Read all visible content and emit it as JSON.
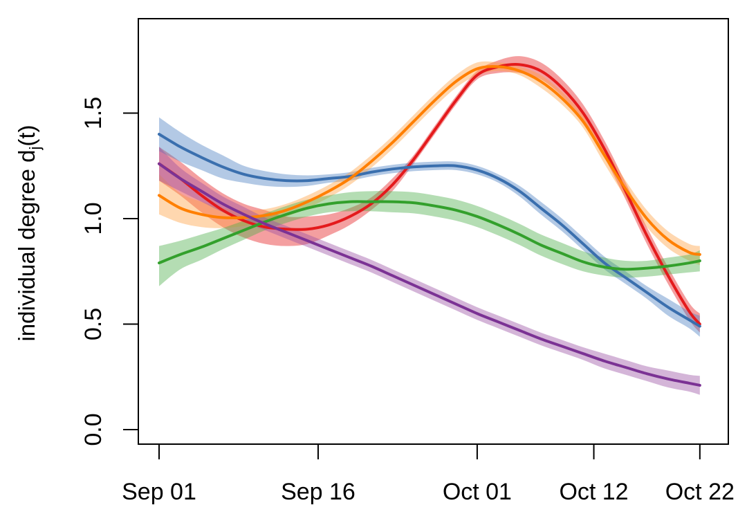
{
  "chart_data": {
    "type": "line",
    "title": "",
    "xlabel": "",
    "ylabel": {
      "main": "individual degree d",
      "subscript": "j",
      "suffix": "(t)"
    },
    "x_ticks": [
      {
        "label": "Sep 01",
        "day": 0
      },
      {
        "label": "Sep 16",
        "day": 15
      },
      {
        "label": "Oct 01",
        "day": 30
      },
      {
        "label": "Oct 12",
        "day": 41
      },
      {
        "label": "Oct 22",
        "day": 51
      }
    ],
    "xlim": [
      -2,
      52.5
    ],
    "y_ticks": [
      {
        "label": "0.0",
        "value": 0.0
      },
      {
        "label": "0.5",
        "value": 0.5
      },
      {
        "label": "1.0",
        "value": 1.0
      },
      {
        "label": "1.5",
        "value": 1.5
      }
    ],
    "ylim": [
      -0.07,
      1.95
    ],
    "x_day_unit": "days since Sep 01",
    "grid": false,
    "legend": "none",
    "series": [
      {
        "name": "red",
        "line_color": "#e41a1c",
        "band_color": "#e41a1c",
        "x": [
          0,
          2,
          4,
          6,
          8,
          10,
          12,
          14,
          16,
          18,
          20,
          22,
          24,
          26,
          28,
          30,
          32,
          34,
          36,
          38,
          40,
          42,
          44,
          46,
          48,
          50,
          51
        ],
        "y": [
          1.26,
          1.19,
          1.11,
          1.04,
          0.99,
          0.96,
          0.95,
          0.95,
          0.97,
          1.01,
          1.07,
          1.16,
          1.28,
          1.42,
          1.56,
          1.68,
          1.72,
          1.73,
          1.7,
          1.62,
          1.5,
          1.33,
          1.13,
          0.92,
          0.73,
          0.56,
          0.5
        ],
        "upper": [
          1.34,
          1.27,
          1.19,
          1.12,
          1.07,
          1.04,
          1.01,
          1.01,
          1.02,
          1.05,
          1.1,
          1.19,
          1.3,
          1.44,
          1.58,
          1.7,
          1.75,
          1.77,
          1.74,
          1.66,
          1.54,
          1.37,
          1.17,
          0.96,
          0.77,
          0.6,
          0.55
        ],
        "lower": [
          1.18,
          1.11,
          1.03,
          0.96,
          0.91,
          0.88,
          0.87,
          0.88,
          0.92,
          0.97,
          1.04,
          1.13,
          1.26,
          1.4,
          1.54,
          1.66,
          1.69,
          1.69,
          1.66,
          1.58,
          1.46,
          1.29,
          1.09,
          0.88,
          0.69,
          0.52,
          0.46
        ]
      },
      {
        "name": "blue",
        "line_color": "#3a6fae",
        "band_color": "#4a7fc0",
        "x": [
          0,
          2,
          4,
          6,
          8,
          10,
          12,
          14,
          16,
          18,
          20,
          22,
          24,
          26,
          28,
          30,
          32,
          34,
          36,
          38,
          40,
          42,
          44,
          46,
          48,
          50,
          51
        ],
        "y": [
          1.4,
          1.34,
          1.29,
          1.245,
          1.21,
          1.19,
          1.18,
          1.18,
          1.19,
          1.2,
          1.22,
          1.235,
          1.245,
          1.25,
          1.25,
          1.23,
          1.19,
          1.13,
          1.05,
          0.97,
          0.88,
          0.79,
          0.72,
          0.65,
          0.58,
          0.52,
          0.49
        ],
        "upper": [
          1.48,
          1.41,
          1.35,
          1.3,
          1.25,
          1.225,
          1.21,
          1.205,
          1.21,
          1.22,
          1.24,
          1.255,
          1.265,
          1.27,
          1.27,
          1.25,
          1.21,
          1.155,
          1.08,
          1.0,
          0.91,
          0.82,
          0.75,
          0.68,
          0.62,
          0.56,
          0.54
        ],
        "lower": [
          1.32,
          1.27,
          1.23,
          1.19,
          1.17,
          1.155,
          1.15,
          1.155,
          1.17,
          1.18,
          1.2,
          1.215,
          1.225,
          1.23,
          1.23,
          1.21,
          1.17,
          1.105,
          1.02,
          0.94,
          0.85,
          0.76,
          0.69,
          0.62,
          0.54,
          0.48,
          0.44
        ]
      },
      {
        "name": "orange",
        "line_color": "#ff7f00",
        "band_color": "#ff9f40",
        "x": [
          0,
          2,
          4,
          6,
          8,
          10,
          12,
          14,
          16,
          18,
          20,
          22,
          24,
          26,
          28,
          30,
          32,
          34,
          36,
          38,
          40,
          42,
          44,
          46,
          48,
          50,
          51
        ],
        "y": [
          1.11,
          1.05,
          1.02,
          1.005,
          1.005,
          1.015,
          1.04,
          1.08,
          1.13,
          1.19,
          1.27,
          1.36,
          1.46,
          1.56,
          1.65,
          1.71,
          1.72,
          1.7,
          1.65,
          1.57,
          1.46,
          1.3,
          1.14,
          1.0,
          0.9,
          0.84,
          0.83
        ],
        "upper": [
          1.21,
          1.12,
          1.08,
          1.05,
          1.04,
          1.045,
          1.07,
          1.11,
          1.16,
          1.22,
          1.3,
          1.39,
          1.49,
          1.59,
          1.68,
          1.74,
          1.74,
          1.72,
          1.68,
          1.6,
          1.49,
          1.34,
          1.18,
          1.04,
          0.94,
          0.88,
          0.87
        ],
        "lower": [
          1.02,
          0.98,
          0.96,
          0.955,
          0.965,
          0.985,
          1.01,
          1.05,
          1.1,
          1.16,
          1.24,
          1.33,
          1.43,
          1.53,
          1.62,
          1.68,
          1.7,
          1.68,
          1.62,
          1.54,
          1.43,
          1.26,
          1.1,
          0.96,
          0.86,
          0.8,
          0.78
        ]
      },
      {
        "name": "green",
        "line_color": "#33a02c",
        "band_color": "#4daf4a",
        "x": [
          0,
          2,
          4,
          6,
          8,
          10,
          12,
          14,
          16,
          18,
          20,
          22,
          24,
          26,
          28,
          30,
          32,
          34,
          36,
          38,
          40,
          42,
          44,
          46,
          48,
          50,
          51
        ],
        "y": [
          0.79,
          0.83,
          0.865,
          0.905,
          0.945,
          0.985,
          1.02,
          1.05,
          1.07,
          1.08,
          1.08,
          1.08,
          1.075,
          1.06,
          1.04,
          1.01,
          0.97,
          0.925,
          0.875,
          0.835,
          0.795,
          0.77,
          0.76,
          0.765,
          0.775,
          0.79,
          0.8
        ],
        "upper": [
          0.87,
          0.895,
          0.925,
          0.955,
          0.99,
          1.025,
          1.06,
          1.09,
          1.11,
          1.125,
          1.13,
          1.13,
          1.125,
          1.11,
          1.09,
          1.06,
          1.02,
          0.975,
          0.925,
          0.885,
          0.845,
          0.815,
          0.8,
          0.8,
          0.815,
          0.83,
          0.85
        ],
        "lower": [
          0.68,
          0.76,
          0.805,
          0.855,
          0.9,
          0.945,
          0.98,
          1.01,
          1.03,
          1.035,
          1.035,
          1.03,
          1.025,
          1.01,
          0.99,
          0.96,
          0.92,
          0.875,
          0.825,
          0.785,
          0.75,
          0.73,
          0.72,
          0.725,
          0.735,
          0.745,
          0.75
        ]
      },
      {
        "name": "purple",
        "line_color": "#7b3294",
        "band_color": "#984ea3",
        "x": [
          0,
          2,
          4,
          6,
          8,
          10,
          12,
          14,
          16,
          18,
          20,
          22,
          24,
          26,
          28,
          30,
          32,
          34,
          36,
          38,
          40,
          42,
          44,
          46,
          48,
          50,
          51
        ],
        "y": [
          1.26,
          1.19,
          1.13,
          1.07,
          1.02,
          0.975,
          0.935,
          0.895,
          0.855,
          0.815,
          0.775,
          0.73,
          0.685,
          0.64,
          0.595,
          0.55,
          0.51,
          0.47,
          0.43,
          0.395,
          0.36,
          0.325,
          0.295,
          0.265,
          0.24,
          0.22,
          0.21
        ],
        "upper": [
          1.34,
          1.24,
          1.17,
          1.105,
          1.055,
          1.005,
          0.965,
          0.925,
          0.885,
          0.845,
          0.805,
          0.76,
          0.715,
          0.67,
          0.625,
          0.58,
          0.54,
          0.5,
          0.46,
          0.425,
          0.39,
          0.36,
          0.33,
          0.3,
          0.28,
          0.26,
          0.255
        ],
        "lower": [
          1.18,
          1.13,
          1.08,
          1.03,
          0.985,
          0.945,
          0.905,
          0.865,
          0.825,
          0.785,
          0.745,
          0.7,
          0.655,
          0.61,
          0.565,
          0.52,
          0.48,
          0.44,
          0.4,
          0.365,
          0.33,
          0.29,
          0.26,
          0.23,
          0.2,
          0.18,
          0.165
        ]
      }
    ]
  }
}
